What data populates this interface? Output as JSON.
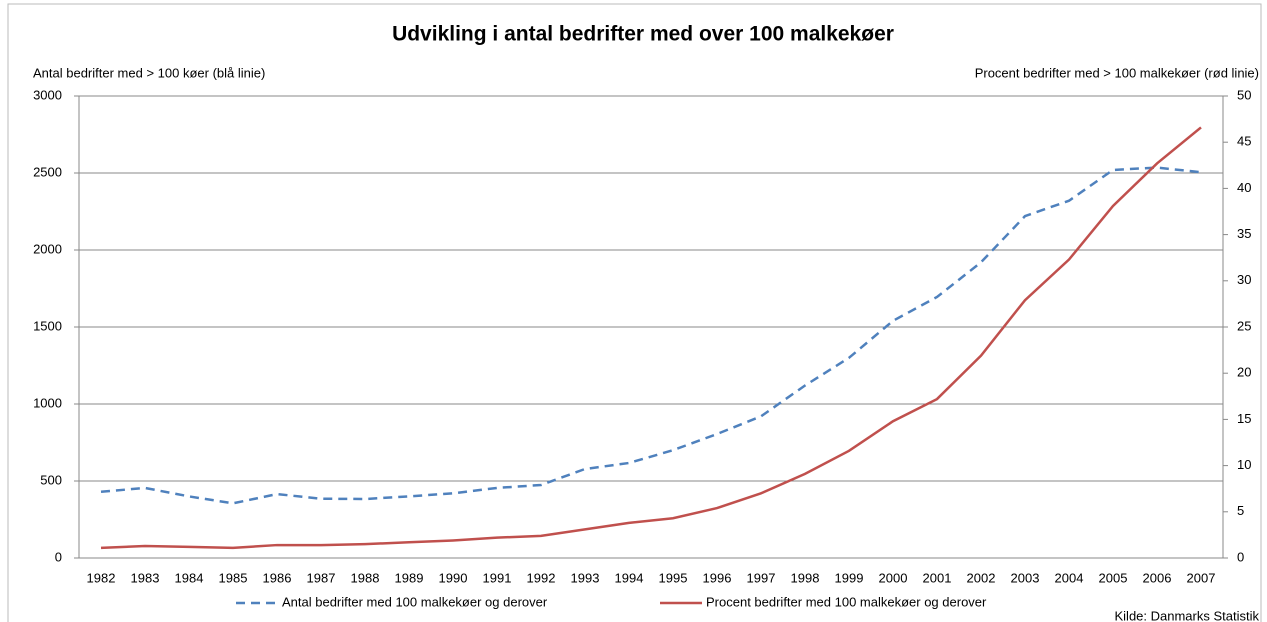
{
  "chart_data": {
    "type": "line",
    "title": "Udvikling i antal bedrifter med over 100 malkekøer",
    "y_label": "Antal bedrifter med > 100 køer (blå linie)",
    "y2_label": "Procent bedrifter med > 100 malkekøer (rød linie)",
    "source": "Kilde: Danmarks Statistik",
    "categories": [
      "1982",
      "1983",
      "1984",
      "1985",
      "1986",
      "1987",
      "1988",
      "1989",
      "1990",
      "1991",
      "1992",
      "1993",
      "1994",
      "1995",
      "1996",
      "1997",
      "1998",
      "1999",
      "2000",
      "2001",
      "2002",
      "2003",
      "2004",
      "2005",
      "2006",
      "2007"
    ],
    "series": [
      {
        "name": "Antal bedrifter med 100 malkekøer og derover",
        "color": "#4f81bd",
        "dashed": true,
        "axis": "y",
        "values": [
          430,
          455,
          400,
          355,
          415,
          385,
          383,
          400,
          420,
          455,
          474,
          578,
          617,
          700,
          805,
          920,
          1120,
          1300,
          1540,
          1695,
          1920,
          2220,
          2320,
          2520,
          2535,
          2505
        ]
      },
      {
        "name": "Procent bedrifter med 100 malkekøer og derover",
        "color": "#c0504d",
        "dashed": false,
        "axis": "y2",
        "values": [
          1.1,
          1.3,
          1.2,
          1.1,
          1.4,
          1.4,
          1.5,
          1.7,
          1.9,
          2.2,
          2.4,
          3.1,
          3.8,
          4.3,
          5.4,
          7.0,
          9.1,
          11.6,
          14.8,
          17.2,
          21.9,
          27.9,
          32.3,
          38.1,
          42.7,
          46.6
        ]
      }
    ],
    "ylim": [
      0,
      3000
    ],
    "yticks": [
      0,
      500,
      1000,
      1500,
      2000,
      2500,
      3000
    ],
    "y2lim": [
      0,
      50
    ],
    "y2ticks": [
      0,
      5,
      10,
      15,
      20,
      25,
      30,
      35,
      40,
      45,
      50
    ],
    "grid": true
  }
}
